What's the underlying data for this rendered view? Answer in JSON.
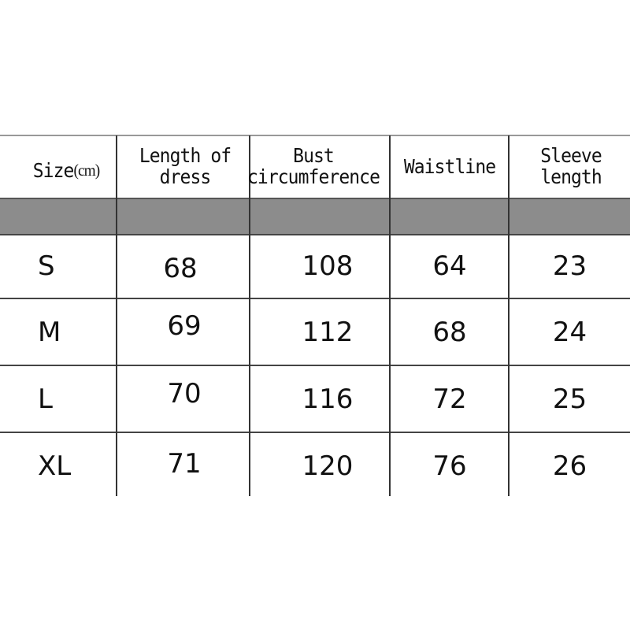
{
  "table": {
    "headers": {
      "size": "Size",
      "unit": "(cm)",
      "length": "Length of dress",
      "bust": "Bust circumference",
      "waist": "Waistline",
      "sleeve": "Sleeve length"
    },
    "rows": [
      {
        "size": "S",
        "length": "68",
        "bust": "108",
        "waist": "64",
        "sleeve": "23"
      },
      {
        "size": "M",
        "length": "69",
        "bust": "112",
        "waist": "68",
        "sleeve": "24"
      },
      {
        "size": "L",
        "length": "70",
        "bust": "116",
        "waist": "72",
        "sleeve": "25"
      },
      {
        "size": "XL",
        "length": "71",
        "bust": "120",
        "waist": "76",
        "sleeve": "26"
      }
    ],
    "band_color": "#8c8c8c"
  }
}
